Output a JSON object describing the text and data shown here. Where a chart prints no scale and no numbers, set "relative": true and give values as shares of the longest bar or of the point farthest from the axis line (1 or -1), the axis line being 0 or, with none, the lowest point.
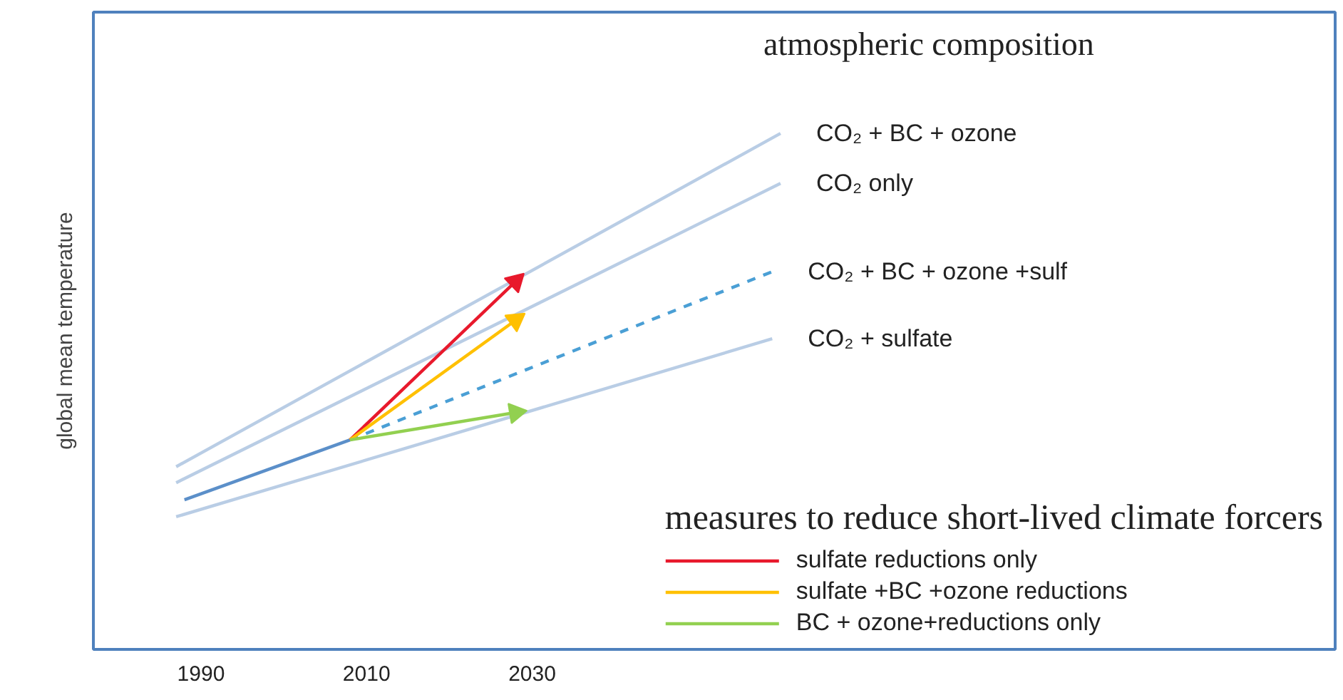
{
  "chart_data": {
    "type": "line",
    "relative": true,
    "ylabel": "global mean temperature",
    "xlim": [
      1977,
      2127
    ],
    "xticks": [
      1990,
      2010,
      2030
    ],
    "tick_labels": "x",
    "grid": false,
    "legend": "bottom right",
    "legend_title": "measures to reduce short-lived climate forcers",
    "annotations": [
      "atmospheric composition"
    ],
    "series": [
      {
        "name": "CO₂ + BC + ozone",
        "color": "#b9cde5",
        "x": [
          1987,
          2060
        ],
        "values": [
          0.354,
          1
        ]
      },
      {
        "name": "CO₂ only",
        "color": "#b9cde5",
        "x": [
          1987,
          2060
        ],
        "values": [
          0.323,
          0.903
        ]
      },
      {
        "name": "CO₂ + BC + ozone +sulf",
        "color": "#4a9fd5",
        "line_style": "dashed",
        "x": [
          2008,
          2059
        ],
        "values": [
          0.406,
          0.732
        ]
      },
      {
        "name": "CO₂ + sulfate",
        "color": "#b9cde5",
        "x": [
          1987,
          2059
        ],
        "values": [
          0.257,
          0.602
        ]
      },
      {
        "color": "#5b8fc9",
        "x": [
          1988,
          2008
        ],
        "values": [
          0.29,
          0.406
        ]
      },
      {
        "name": "sulfate reductions only",
        "color": "#e8192c",
        "marker": "triangle",
        "x": [
          2008,
          2028
        ],
        "values": [
          0.406,
          0.713
        ]
      },
      {
        "name": "sulfate +BC +ozone reductions",
        "color": "#ffc000",
        "marker": "triangle",
        "x": [
          2008,
          2028
        ],
        "values": [
          0.406,
          0.638
        ]
      },
      {
        "name": "BC + ozone+reductions only",
        "color": "#92d050",
        "marker": "triangle",
        "x": [
          2008,
          2028
        ],
        "values": [
          0.406,
          0.459
        ]
      }
    ]
  }
}
